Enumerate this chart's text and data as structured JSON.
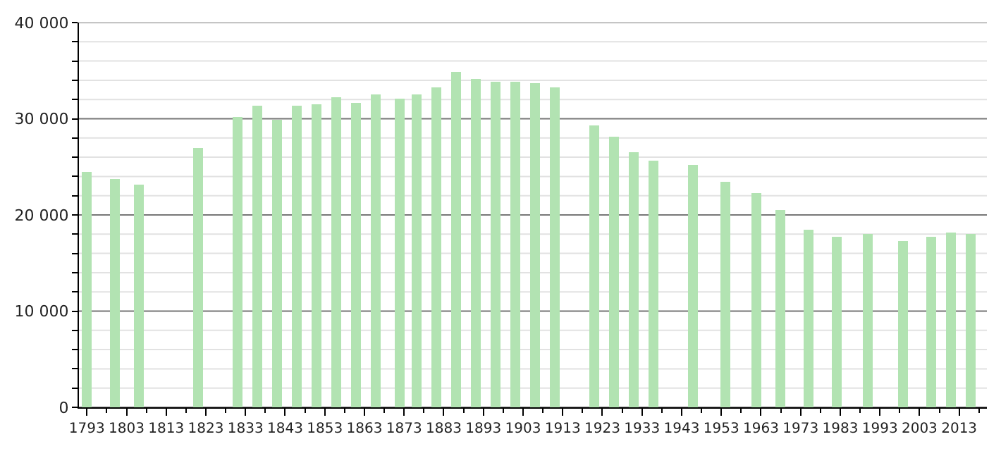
{
  "chart_data": {
    "type": "bar",
    "color": "#b2e3b2",
    "x": [
      1793,
      1800,
      1806,
      1821,
      1831,
      1836,
      1841,
      1846,
      1851,
      1856,
      1861,
      1866,
      1872,
      1876,
      1881,
      1886,
      1891,
      1896,
      1901,
      1906,
      1911,
      1921,
      1926,
      1931,
      1936,
      1946,
      1954,
      1962,
      1968,
      1975,
      1982,
      1990,
      1999,
      2006,
      2011,
      2016
    ],
    "values": [
      24500,
      23700,
      23100,
      27000,
      30200,
      31400,
      29900,
      31400,
      31500,
      32200,
      31600,
      32600,
      32100,
      32500,
      33200,
      34800,
      34100,
      33900,
      33900,
      33700,
      33200,
      29300,
      28100,
      26500,
      25600,
      25200,
      23500,
      22200,
      20500,
      18500,
      17700,
      18000,
      17300,
      17700,
      18200,
      18000
    ],
    "xlim": [
      1791,
      2020
    ],
    "ylim": [
      0,
      40000
    ],
    "xticks": [
      1793,
      1803,
      1813,
      1823,
      1833,
      1843,
      1853,
      1863,
      1873,
      1883,
      1893,
      1903,
      1913,
      1923,
      1933,
      1943,
      1953,
      1963,
      1973,
      1983,
      1993,
      2003,
      2013
    ],
    "yticks": [
      {
        "value": 0,
        "label": "0"
      },
      {
        "value": 2000,
        "label": null
      },
      {
        "value": 4000,
        "label": null
      },
      {
        "value": 6000,
        "label": null
      },
      {
        "value": 8000,
        "label": null
      },
      {
        "value": 10000,
        "label": "10 000"
      },
      {
        "value": 12000,
        "label": null
      },
      {
        "value": 14000,
        "label": null
      },
      {
        "value": 16000,
        "label": null
      },
      {
        "value": 18000,
        "label": null
      },
      {
        "value": 20000,
        "label": "20 000"
      },
      {
        "value": 22000,
        "label": null
      },
      {
        "value": 24000,
        "label": null
      },
      {
        "value": 26000,
        "label": null
      },
      {
        "value": 28000,
        "label": null
      },
      {
        "value": 30000,
        "label": "30 000"
      },
      {
        "value": 32000,
        "label": null
      },
      {
        "value": 34000,
        "label": null
      },
      {
        "value": 36000,
        "label": null
      },
      {
        "value": 38000,
        "label": null
      },
      {
        "value": 40000,
        "label": "40 000"
      }
    ],
    "grid": "y"
  }
}
